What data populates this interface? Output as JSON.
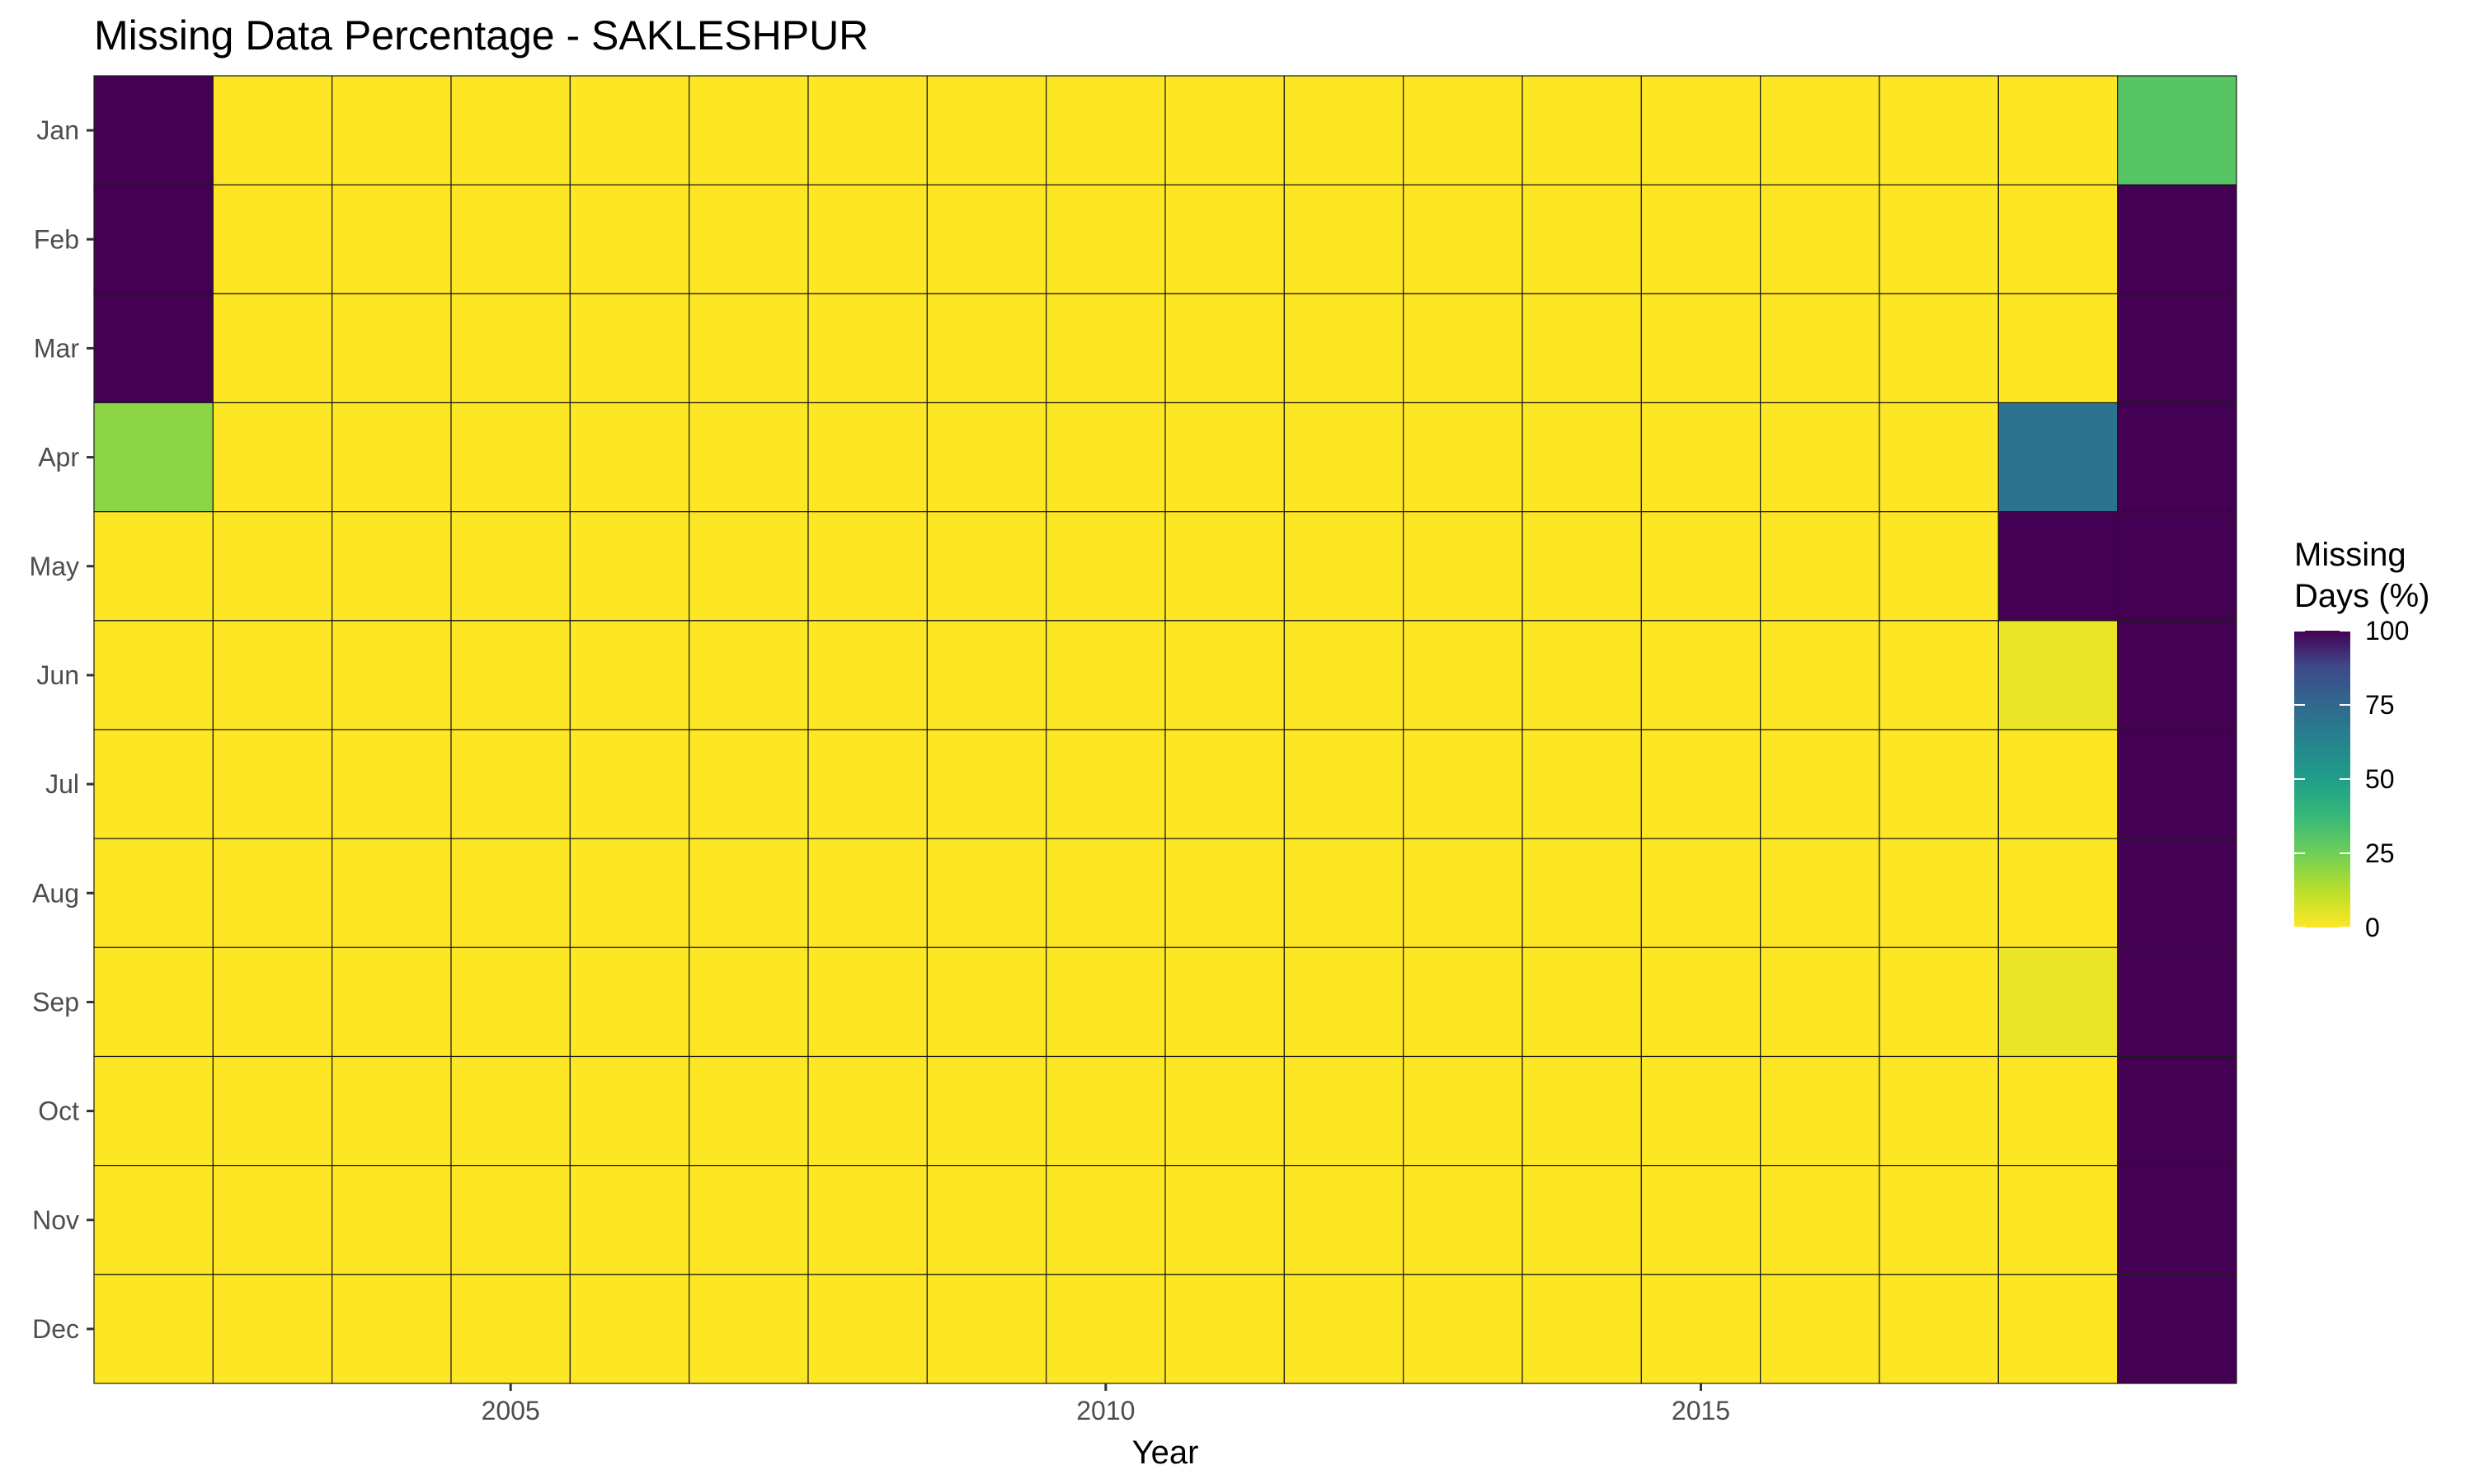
{
  "chart_data": {
    "type": "heatmap",
    "title": "Missing Data Percentage - SAKLESHPUR",
    "xlabel": "Year",
    "ylabel": "",
    "x": [
      2002,
      2003,
      2004,
      2005,
      2006,
      2007,
      2008,
      2009,
      2010,
      2011,
      2012,
      2013,
      2014,
      2015,
      2016,
      2017,
      2018,
      2019
    ],
    "x_ticks": [
      "2005",
      "2010",
      "2015"
    ],
    "y": [
      "Jan",
      "Feb",
      "Mar",
      "Apr",
      "May",
      "Jun",
      "Jul",
      "Aug",
      "Sep",
      "Oct",
      "Nov",
      "Dec"
    ],
    "values": [
      [
        100,
        0,
        0,
        0,
        0,
        0,
        0,
        0,
        0,
        0,
        0,
        0,
        0,
        0,
        0,
        0,
        0,
        30
      ],
      [
        100,
        0,
        0,
        0,
        0,
        0,
        0,
        0,
        0,
        0,
        0,
        0,
        0,
        0,
        0,
        0,
        0,
        100
      ],
      [
        100,
        0,
        0,
        0,
        0,
        0,
        0,
        0,
        0,
        0,
        0,
        0,
        0,
        0,
        0,
        0,
        0,
        100
      ],
      [
        20,
        0,
        0,
        0,
        0,
        0,
        0,
        0,
        0,
        0,
        0,
        0,
        0,
        0,
        0,
        0,
        70,
        100
      ],
      [
        0,
        0,
        0,
        0,
        0,
        0,
        0,
        0,
        0,
        0,
        0,
        0,
        0,
        0,
        0,
        0,
        100,
        100
      ],
      [
        0,
        0,
        0,
        0,
        0,
        0,
        0,
        0,
        0,
        0,
        0,
        0,
        0,
        0,
        0,
        0,
        3.3,
        100
      ],
      [
        0,
        0,
        0,
        0,
        0,
        0,
        0,
        0,
        0,
        0,
        0,
        0,
        0,
        0,
        0,
        0,
        0,
        100
      ],
      [
        0,
        0,
        0,
        0,
        0,
        0,
        0,
        0,
        0,
        0,
        0,
        0,
        0,
        0,
        0,
        0,
        0,
        100
      ],
      [
        0,
        0,
        0,
        0,
        0,
        0,
        0,
        0,
        0,
        0,
        0,
        0,
        0,
        0,
        0,
        0,
        3.3,
        100
      ],
      [
        0,
        0,
        0,
        0,
        0,
        0,
        0,
        0,
        0,
        0,
        0,
        0,
        0,
        0,
        0,
        0,
        0,
        100
      ],
      [
        0,
        0,
        0,
        0,
        0,
        0,
        0,
        0,
        0,
        0,
        0,
        0,
        0,
        0,
        0,
        0,
        0,
        100
      ],
      [
        0,
        0,
        0,
        0,
        0,
        0,
        0,
        0,
        0,
        0,
        0,
        0,
        0,
        0,
        0,
        0,
        0,
        100
      ]
    ],
    "legend": {
      "title_lines": [
        "Missing",
        "Days (%)"
      ],
      "ticks": [
        100,
        75,
        50,
        25,
        0
      ],
      "placement": "right"
    },
    "color_scale": {
      "name": "viridis",
      "min": 0,
      "max": 100,
      "reversed": true
    },
    "grid": false
  }
}
